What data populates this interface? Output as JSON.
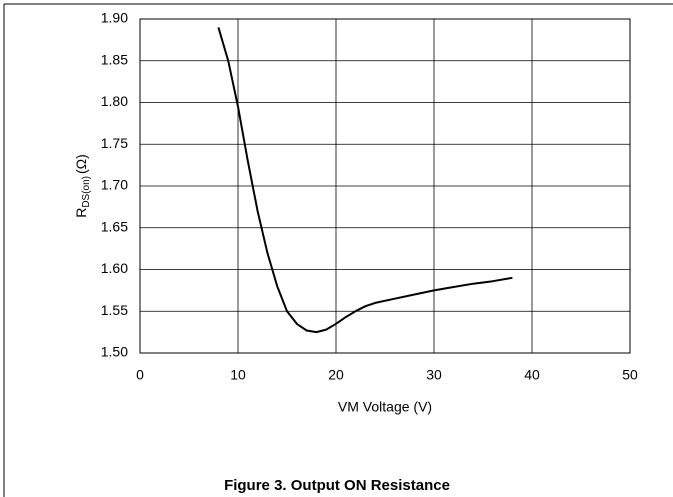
{
  "chart_data": {
    "type": "line",
    "caption": "Figure 3. Output ON Resistance",
    "x_label": "VM Voltage (V)",
    "y_label": {
      "main": "R",
      "sub": "DS(on)",
      "unit": "(Ω)"
    },
    "x": [
      8,
      9,
      10,
      11,
      12,
      13,
      14,
      15,
      16,
      17,
      18,
      19,
      20,
      21,
      22,
      23,
      24,
      26,
      28,
      30,
      32,
      34,
      36,
      38
    ],
    "series": [
      {
        "color": "#000000",
        "values": [
          1.89,
          1.85,
          1.795,
          1.73,
          1.67,
          1.62,
          1.58,
          1.55,
          1.535,
          1.527,
          1.525,
          1.528,
          1.535,
          1.543,
          1.55,
          1.556,
          1.56,
          1.565,
          1.57,
          1.575,
          1.579,
          1.583,
          1.586,
          1.59
        ]
      }
    ],
    "xlim": [
      0,
      50
    ],
    "xticks": [
      0,
      10,
      20,
      30,
      40,
      50
    ],
    "ylim": [
      1.5,
      1.9
    ],
    "yticks": [
      {
        "value": 1.5,
        "label": "1.50"
      },
      1.55,
      {
        "value": 1.6,
        "label": "1.60"
      },
      1.65,
      {
        "value": 1.7,
        "label": "1.70"
      },
      1.75,
      {
        "value": 1.8,
        "label": "1.80"
      },
      1.85,
      {
        "value": 1.9,
        "label": "1.90"
      }
    ],
    "grid": true
  }
}
